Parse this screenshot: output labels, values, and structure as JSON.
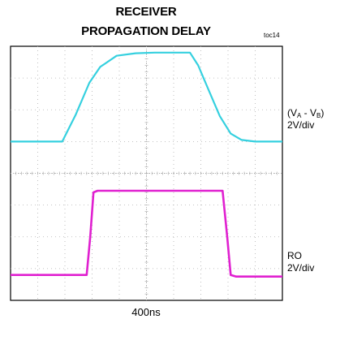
{
  "chart": {
    "title_line1": "RECEIVER",
    "title_line2": "PROPAGATION DELAY",
    "figure_id": "toc14",
    "timebase": "400ns"
  },
  "chart_data": {
    "type": "line",
    "title": "RECEIVER PROPAGATION DELAY",
    "grid": true,
    "divisions": {
      "x": 10,
      "y": 8
    },
    "xlabel": "400ns",
    "x_unit": "div",
    "xlim": [
      0,
      10
    ],
    "ylim": [
      -4,
      4
    ],
    "series": [
      {
        "label": "(VA - VB)",
        "label_A": "A",
        "label_B": "B",
        "scale": "2V/div",
        "color": "#35d0df",
        "x": [
          0.0,
          1.9,
          2.4,
          2.9,
          3.3,
          3.9,
          4.6,
          5.3,
          6.6,
          6.9,
          7.3,
          7.7,
          8.1,
          8.5,
          9.0,
          10.0
        ],
        "y": [
          1.0,
          1.0,
          1.85,
          2.85,
          3.35,
          3.7,
          3.78,
          3.8,
          3.8,
          3.4,
          2.6,
          1.8,
          1.25,
          1.05,
          1.0,
          1.0
        ]
      },
      {
        "label": "RO",
        "scale": "2V/div",
        "color": "#e020d0",
        "x": [
          0.0,
          2.8,
          2.93,
          3.05,
          3.2,
          7.8,
          7.97,
          8.1,
          8.3,
          10.0
        ],
        "y": [
          -3.2,
          -3.2,
          -2.0,
          -0.6,
          -0.55,
          -0.55,
          -2.0,
          -3.2,
          -3.25,
          -3.25
        ]
      }
    ]
  },
  "colors": {
    "grid": "#b0b0b0",
    "frame": "#000000"
  }
}
